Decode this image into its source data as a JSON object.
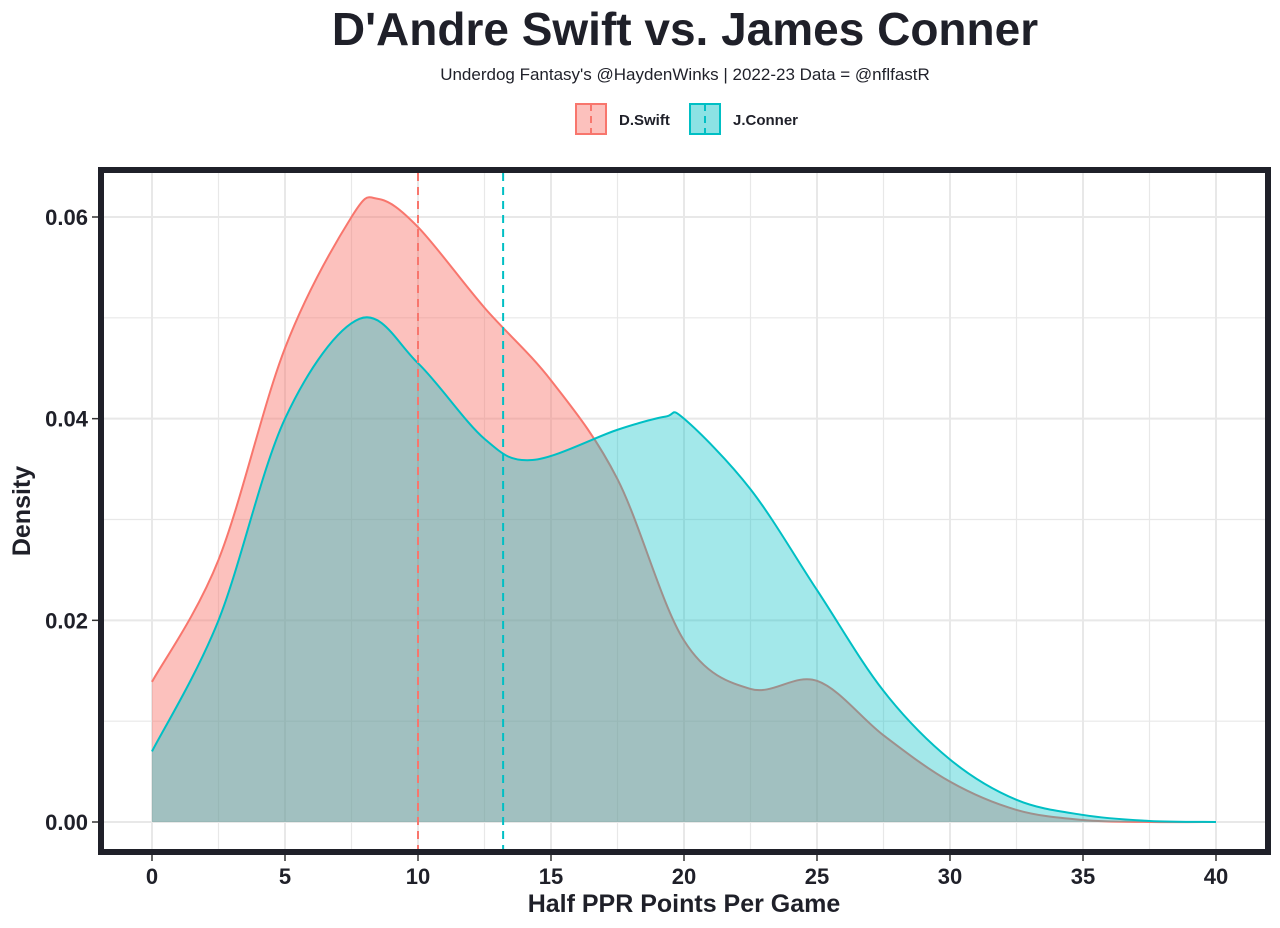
{
  "chart_data": {
    "type": "area",
    "title": "D'Andre Swift vs. James Conner",
    "subtitle": "Underdog Fantasy's @HaydenWinks | 2022-23 Data = @nflfastR",
    "xlabel": "Half PPR Points Per Game",
    "ylabel": "Density",
    "xlim": [
      0,
      40
    ],
    "ylim": [
      0,
      0.06
    ],
    "x_ticks": [
      "0",
      "5",
      "10",
      "15",
      "20",
      "25",
      "30",
      "35",
      "40"
    ],
    "y_ticks": [
      "0.00",
      "0.02",
      "0.04",
      "0.06"
    ],
    "grid": true,
    "legend_position": "top",
    "series": [
      {
        "name": "D.Swift",
        "color": "#F8766D",
        "median_line": 10.0,
        "x": [
          0,
          2.5,
          5,
          7.5,
          8.5,
          10,
          12.5,
          15,
          17.5,
          20,
          22.5,
          25,
          27.5,
          30,
          32.5,
          35,
          37.5,
          40
        ],
        "y": [
          0.0139,
          0.026,
          0.047,
          0.06,
          0.0618,
          0.059,
          0.051,
          0.0438,
          0.034,
          0.018,
          0.0132,
          0.014,
          0.0086,
          0.004,
          0.0012,
          0.0002,
          0,
          0
        ]
      },
      {
        "name": "J.Conner",
        "color": "#00BFC4",
        "median_line": 13.2,
        "x": [
          0,
          2.5,
          5,
          7.8,
          10,
          12.5,
          14.3,
          17.5,
          19.3,
          20,
          22.5,
          25,
          27.5,
          30,
          32.5,
          35,
          37.5,
          40
        ],
        "y": [
          0.007,
          0.02,
          0.04,
          0.0499,
          0.0455,
          0.038,
          0.0359,
          0.0389,
          0.0402,
          0.04,
          0.033,
          0.023,
          0.013,
          0.0062,
          0.0022,
          0.0007,
          0.0001,
          0
        ]
      }
    ]
  }
}
